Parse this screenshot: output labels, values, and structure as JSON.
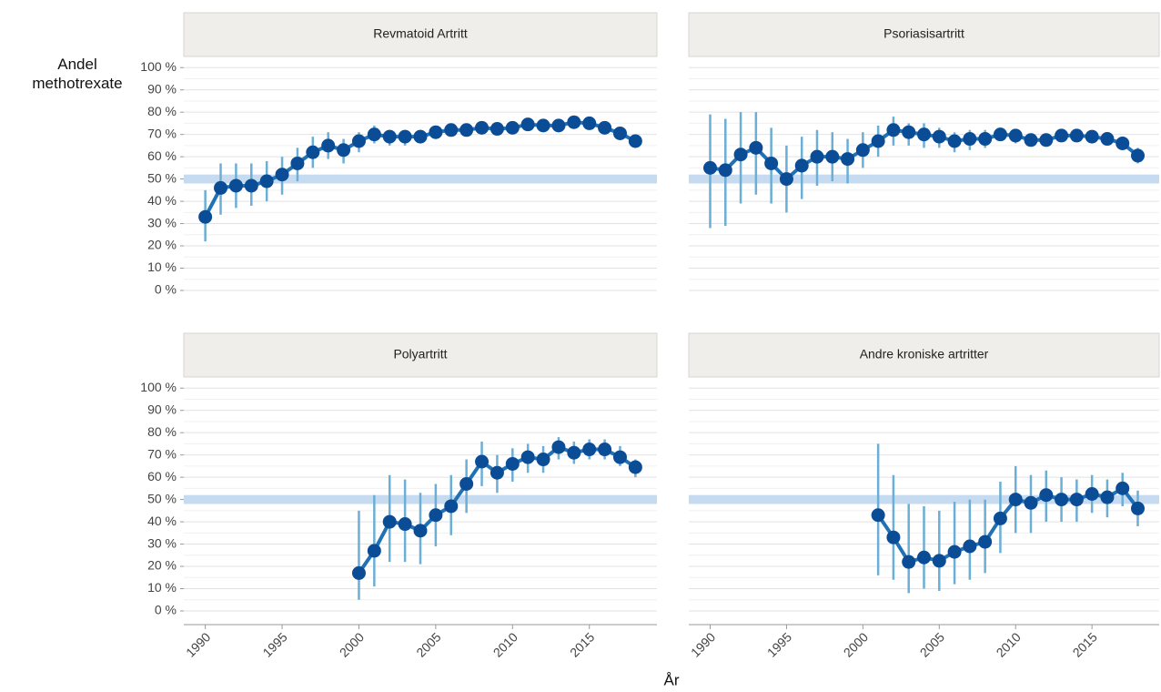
{
  "axes": {
    "x_label": "År",
    "y_label": "Andel methotrexate",
    "xlim": [
      1988.6,
      2019.4
    ],
    "ylim": [
      -4.5,
      105
    ],
    "xticks": [
      1990,
      1995,
      2000,
      2005,
      2010,
      2015
    ],
    "yticks": [
      {
        "value": 0,
        "label": "0 %"
      },
      {
        "value": 10,
        "label": "10 %"
      },
      {
        "value": 20,
        "label": "20 %"
      },
      {
        "value": 30,
        "label": "30 %"
      },
      {
        "value": 40,
        "label": "40 %"
      },
      {
        "value": 50,
        "label": "50 %"
      },
      {
        "value": 60,
        "label": "60 %"
      },
      {
        "value": 70,
        "label": "70 %"
      },
      {
        "value": 80,
        "label": "80 %"
      },
      {
        "value": 90,
        "label": "90 %"
      },
      {
        "value": 100,
        "label": "100 %"
      }
    ],
    "reference_band": [
      48,
      52
    ],
    "band_color": "#c6dbef",
    "grid": true
  },
  "chart_data": [
    {
      "type": "line",
      "title": "Revmatoid Artritt",
      "color": "#2171b5",
      "point_color": "#0b4c96",
      "error_color": "#6baed6",
      "x": [
        1990,
        1991,
        1992,
        1993,
        1994,
        1995,
        1996,
        1997,
        1998,
        1999,
        2000,
        2001,
        2002,
        2003,
        2004,
        2005,
        2006,
        2007,
        2008,
        2009,
        2010,
        2011,
        2012,
        2013,
        2014,
        2015,
        2016,
        2017,
        2018
      ],
      "values": [
        33,
        46,
        47,
        47,
        49,
        52,
        57,
        62,
        65,
        63,
        67,
        70,
        69,
        69,
        69,
        71,
        72,
        72,
        73,
        72.5,
        73,
        74.5,
        74,
        74,
        75.5,
        75,
        73,
        70.5,
        67
      ],
      "lower": [
        22,
        34,
        37,
        38,
        40,
        43,
        49,
        55,
        59,
        57,
        62,
        66,
        65,
        65,
        66,
        68,
        70,
        70,
        71,
        71,
        71,
        73,
        72,
        72,
        74,
        73,
        71,
        68,
        64
      ],
      "upper": [
        45,
        57,
        57,
        57,
        58,
        60,
        64,
        69,
        71,
        68,
        71,
        74,
        72,
        72,
        72,
        73,
        74,
        74,
        75,
        74,
        75,
        76,
        76,
        76,
        77,
        77,
        75,
        73,
        70
      ]
    },
    {
      "type": "line",
      "title": "Psoriasisartritt",
      "color": "#2171b5",
      "point_color": "#0b4c96",
      "error_color": "#6baed6",
      "x": [
        1990,
        1991,
        1992,
        1993,
        1994,
        1995,
        1996,
        1997,
        1998,
        1999,
        2000,
        2001,
        2002,
        2003,
        2004,
        2005,
        2006,
        2007,
        2008,
        2009,
        2010,
        2011,
        2012,
        2013,
        2014,
        2015,
        2016,
        2017,
        2018
      ],
      "values": [
        55,
        54,
        61,
        64,
        57,
        50,
        56,
        60,
        60,
        59,
        63,
        67,
        72,
        71,
        70,
        69,
        67,
        68,
        68,
        70,
        69.5,
        67.5,
        67.5,
        69.5,
        69.5,
        69,
        68,
        66,
        60.5
      ],
      "lower": [
        28,
        29,
        39,
        43,
        39,
        35,
        41,
        47,
        49,
        48,
        55,
        60,
        65,
        65,
        64,
        64,
        62,
        63,
        64,
        67,
        66,
        65,
        65,
        67,
        67,
        67,
        66,
        63,
        57
      ],
      "upper": [
        79,
        77,
        80,
        80,
        73,
        65,
        69,
        72,
        71,
        68,
        71,
        74,
        78,
        75,
        75,
        73,
        71,
        72,
        72,
        73,
        72,
        70,
        70,
        72,
        72,
        71,
        70,
        69,
        64
      ]
    },
    {
      "type": "line",
      "title": "Polyartritt",
      "color": "#2171b5",
      "point_color": "#0b4c96",
      "error_color": "#6baed6",
      "x": [
        2000,
        2001,
        2002,
        2003,
        2004,
        2005,
        2006,
        2007,
        2008,
        2009,
        2010,
        2011,
        2012,
        2013,
        2014,
        2015,
        2016,
        2017,
        2018
      ],
      "values": [
        17,
        27,
        40,
        39,
        36,
        43,
        47,
        57,
        67,
        62,
        66,
        69,
        68,
        73.5,
        71,
        72.5,
        72.5,
        69,
        64.5
      ],
      "lower": [
        5,
        11,
        22,
        22,
        21,
        29,
        34,
        44,
        56,
        53,
        58,
        62,
        62,
        68,
        66,
        68,
        68,
        65,
        60
      ],
      "upper": [
        45,
        52,
        61,
        59,
        53,
        57,
        61,
        68,
        76,
        70,
        73,
        75,
        74,
        78,
        76,
        77,
        77,
        74,
        68
      ]
    },
    {
      "type": "line",
      "title": "Andre kroniske artritter",
      "color": "#2171b5",
      "point_color": "#0b4c96",
      "error_color": "#6baed6",
      "x": [
        2001,
        2002,
        2003,
        2004,
        2005,
        2006,
        2007,
        2008,
        2009,
        2010,
        2011,
        2012,
        2013,
        2014,
        2015,
        2016,
        2017,
        2018
      ],
      "values": [
        43,
        33,
        22,
        24,
        22.5,
        26.5,
        29,
        31,
        41.5,
        50,
        48.5,
        52,
        50,
        50,
        52.5,
        51,
        55,
        46
      ],
      "lower": [
        16,
        14,
        8,
        10,
        9,
        12,
        14,
        17,
        26,
        35,
        35,
        40,
        40,
        40,
        44,
        42,
        47,
        38
      ],
      "upper": [
        75,
        61,
        48,
        47,
        45,
        49,
        50,
        50,
        58,
        65,
        61,
        63,
        60,
        59,
        61,
        59,
        62,
        54
      ]
    }
  ]
}
